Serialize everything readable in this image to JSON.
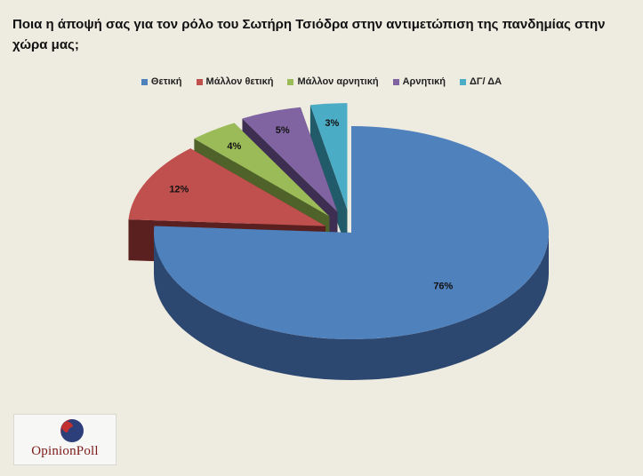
{
  "chart_data": {
    "type": "pie",
    "title": "Ποια η άποψή σας για τον ρόλο του  Σωτήρη Τσιόδρα στην αντιμετώπιση της πανδημίας στην χώρα μας;",
    "categories": [
      "Θετική",
      "Μάλλον θετική",
      "Μάλλον αρνητική",
      "Αρνητική",
      "ΔΓ/ ΔΑ"
    ],
    "values": [
      76,
      12,
      4,
      5,
      3
    ],
    "value_labels": [
      "76%",
      "12%",
      "4%",
      "5%",
      "3%"
    ],
    "colors": [
      "#4f81bd",
      "#c0504d",
      "#9bbb59",
      "#8064a2",
      "#4bacc6"
    ],
    "side_colors": [
      "#2c4770",
      "#5a2020",
      "#4f6229",
      "#3e2f52",
      "#215a68"
    ],
    "legend_position": "top",
    "style": "3d-exploded"
  },
  "logo": {
    "text": "OpinionPoll"
  }
}
